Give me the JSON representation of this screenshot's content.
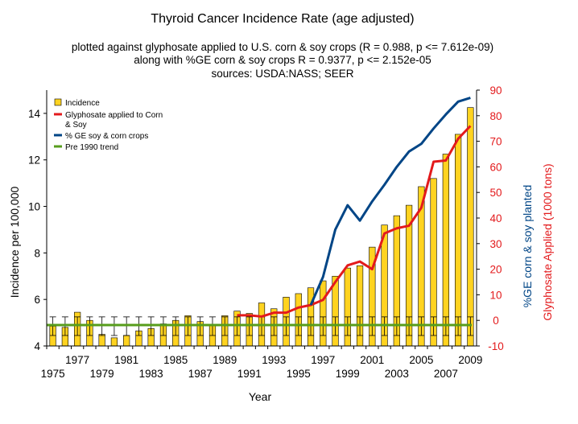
{
  "chart_data": {
    "type": "bar",
    "title": "Thyroid Cancer Incidence Rate (age adjusted)",
    "subtitle_lines": [
      "plotted against glyphosate applied to U.S. corn & soy crops (R = 0.988, p <= 7.612e-09)",
      "along with %GE corn & soy crops R = 0.9377, p <= 2.152e-05",
      "sources: USDA:NASS; SEER"
    ],
    "xlabel": "Year",
    "ylabel_left": "Incidence per 100,000",
    "ylabel_right_1": "%GE corn & soy planted",
    "ylabel_right_2": "Glyphosate Applied (1000 tons)",
    "ylim_left": [
      4,
      15
    ],
    "yticks_left": [
      "4",
      "6",
      "8",
      "10",
      "12",
      "14"
    ],
    "ylim_right": [
      -10,
      90
    ],
    "yticks_right": [
      "-10",
      "0",
      "10",
      "20",
      "30",
      "40",
      "50",
      "60",
      "70",
      "80",
      "90"
    ],
    "x_tick_labels_upper": [
      "1977",
      "1981",
      "1985",
      "1989",
      "1993",
      "1997",
      "2001",
      "2005",
      "2009"
    ],
    "x_tick_labels_lower": [
      "1975",
      "1979",
      "1983",
      "1987",
      "1991",
      "1995",
      "1999",
      "2003",
      "2007"
    ],
    "years": [
      1975,
      1976,
      1977,
      1978,
      1979,
      1980,
      1981,
      1982,
      1983,
      1984,
      1985,
      1986,
      1987,
      1988,
      1989,
      1990,
      1991,
      1992,
      1993,
      1994,
      1995,
      1996,
      1997,
      1998,
      1999,
      2000,
      2001,
      2002,
      2003,
      2004,
      2005,
      2006,
      2007,
      2008,
      2009
    ],
    "legend": {
      "position": "top-left",
      "entries": [
        {
          "label": "Incidence",
          "color": "#ffd320",
          "kind": "box"
        },
        {
          "label_lines": [
            "Glyphosate applied to Corn",
            "& Soy"
          ],
          "color": "#e31a1c",
          "kind": "line"
        },
        {
          "label": "% GE soy & corn crops",
          "color": "#004586",
          "kind": "line"
        },
        {
          "label": "Pre 1990 trend",
          "color": "#579d1c",
          "kind": "line"
        }
      ]
    },
    "series": [
      {
        "name": "Incidence",
        "axis": "left",
        "color": "#ffd320",
        "values": [
          4.85,
          4.8,
          5.45,
          5.1,
          4.5,
          4.35,
          4.45,
          4.65,
          4.75,
          4.95,
          5.1,
          5.3,
          5.05,
          4.9,
          5.3,
          5.5,
          5.4,
          5.85,
          5.6,
          6.1,
          6.25,
          6.5,
          6.8,
          7.0,
          7.35,
          7.45,
          8.25,
          9.2,
          9.6,
          10.05,
          10.85,
          11.2,
          12.25,
          13.1,
          14.25
        ],
        "error_low": 4.45,
        "error_high": 5.25
      },
      {
        "name": "Glyphosate applied to Corn & Soy",
        "axis": "right",
        "color": "#e31a1c",
        "x": [
          1990,
          1991,
          1992,
          1993,
          1994,
          1995,
          1996,
          1997,
          1998,
          1999,
          2000,
          2001,
          2002,
          2003,
          2004,
          2005,
          2006,
          2007,
          2008,
          2009
        ],
        "values": [
          2.0,
          2.0,
          1.5,
          3.0,
          3.0,
          5.0,
          6.0,
          8.0,
          15.0,
          21.5,
          23.0,
          20.0,
          34.0,
          36.0,
          37.0,
          44.0,
          62.0,
          62.5,
          71.0,
          76.0
        ]
      },
      {
        "name": "% GE soy & corn crops",
        "axis": "right",
        "color": "#004586",
        "x": [
          1996,
          1997,
          1998,
          1999,
          2000,
          2001,
          2002,
          2003,
          2004,
          2005,
          2006,
          2007,
          2008,
          2009
        ],
        "values": [
          6.0,
          17.0,
          35.5,
          45.0,
          39.0,
          46.5,
          53.0,
          60.0,
          66.0,
          69.0,
          75.0,
          80.5,
          85.5,
          87.0
        ]
      },
      {
        "name": "Pre 1990 trend",
        "axis": "left",
        "color": "#579d1c",
        "x": [
          1975,
          2009
        ],
        "values": [
          4.9,
          4.9
        ]
      }
    ],
    "grid": false
  }
}
